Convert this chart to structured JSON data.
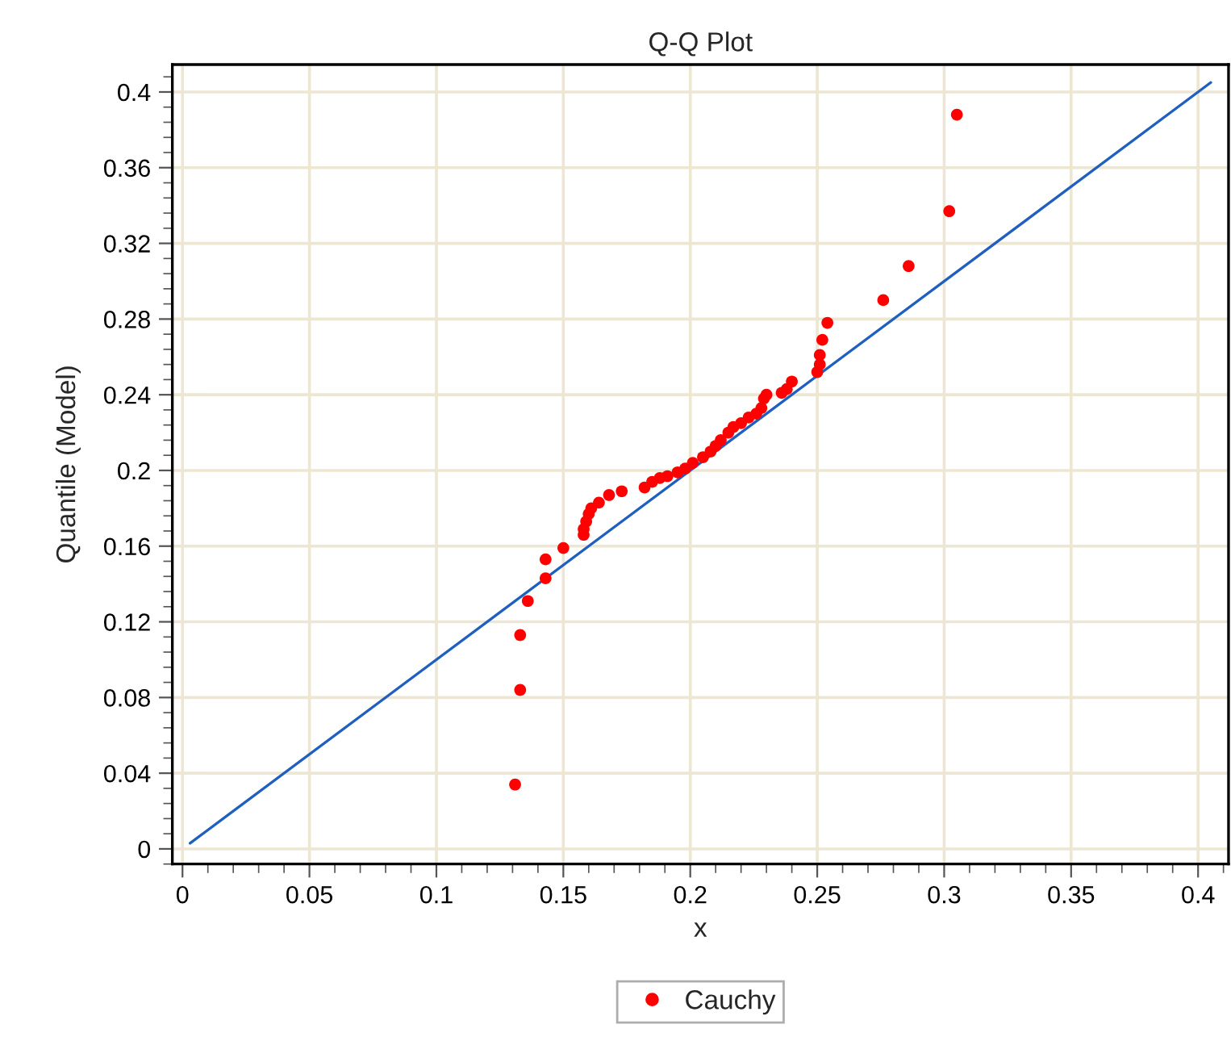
{
  "chart_data": {
    "type": "scatter",
    "title": "Q-Q Plot",
    "xlabel": "x",
    "ylabel": "Quantile (Model)",
    "series": [
      {
        "name": "Cauchy",
        "color": "#ff0000",
        "marker": "circle",
        "x": [
          0.131,
          0.133,
          0.133,
          0.136,
          0.143,
          0.143,
          0.15,
          0.158,
          0.158,
          0.159,
          0.16,
          0.161,
          0.164,
          0.168,
          0.173,
          0.182,
          0.185,
          0.188,
          0.191,
          0.195,
          0.198,
          0.201,
          0.205,
          0.208,
          0.21,
          0.212,
          0.215,
          0.217,
          0.22,
          0.223,
          0.226,
          0.228,
          0.229,
          0.23,
          0.236,
          0.238,
          0.24,
          0.25,
          0.251,
          0.251,
          0.252,
          0.254,
          0.276,
          0.286,
          0.302,
          0.305
        ],
        "values": [
          0.034,
          0.084,
          0.113,
          0.131,
          0.143,
          0.153,
          0.159,
          0.166,
          0.169,
          0.173,
          0.177,
          0.18,
          0.183,
          0.187,
          0.189,
          0.191,
          0.194,
          0.196,
          0.197,
          0.199,
          0.201,
          0.204,
          0.207,
          0.21,
          0.213,
          0.216,
          0.22,
          0.223,
          0.225,
          0.228,
          0.23,
          0.233,
          0.238,
          0.24,
          0.241,
          0.243,
          0.247,
          0.252,
          0.256,
          0.261,
          0.269,
          0.278,
          0.29,
          0.308,
          0.337,
          0.388
        ]
      },
      {
        "type": "line",
        "color": "#1f5fbf",
        "x": [
          0.003,
          0.405
        ],
        "values": [
          0.003,
          0.405
        ]
      }
    ],
    "xlim": [
      -0.004,
      0.412
    ],
    "ylim": [
      -0.008,
      0.4145
    ],
    "xticks": [
      0,
      0.05,
      0.1,
      0.15,
      0.2,
      0.25,
      0.3,
      0.35,
      0.4
    ],
    "yticks": [
      0,
      0.04,
      0.08,
      0.12,
      0.16,
      0.2,
      0.24,
      0.28,
      0.32,
      0.36,
      0.4
    ],
    "grid": true,
    "legend": "bottom"
  }
}
